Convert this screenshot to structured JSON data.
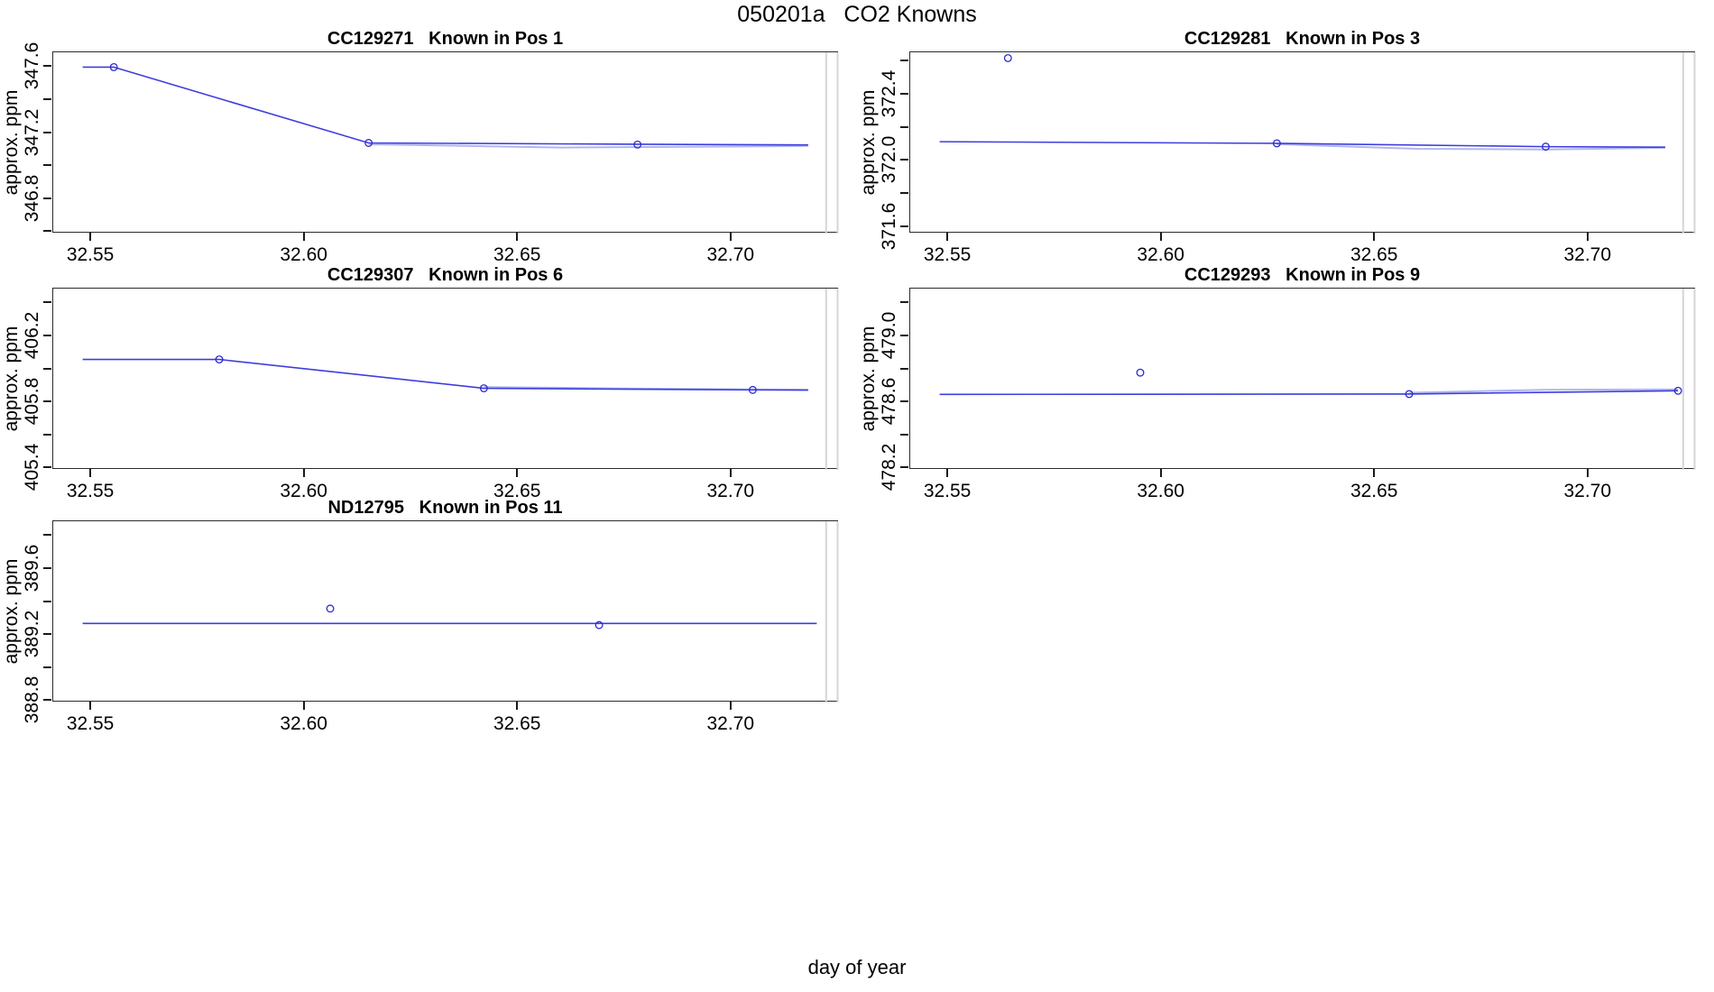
{
  "title": "050201a   CO2 Knowns",
  "xlabel": "day of year",
  "chart_data": {
    "type": "line",
    "layout": "grid-3rows-2cols, 5 panels, bottom-right empty",
    "grid": false,
    "xlim": [
      32.5411,
      32.7252
    ],
    "x_ticks": [
      {
        "v": 32.55,
        "label": "32.55"
      },
      {
        "v": 32.6,
        "label": "32.60"
      },
      {
        "v": 32.65,
        "label": "32.65"
      },
      {
        "v": 32.7,
        "label": "32.70"
      }
    ],
    "guide_lines_x": [
      32.7222,
      32.7252
    ],
    "colors": {
      "line": "#3d3de0",
      "point": "#2b2bcc",
      "fit": "#b0b6ee",
      "guide": "#d5d5d5",
      "axis": "#1a1a1a",
      "text": "#000000"
    },
    "panels": [
      {
        "id": "CC129271",
        "row": 0,
        "col": 0,
        "title": "CC129271   Known in Pos 1",
        "ylabel": "approx. ppm",
        "ylim": [
          346.59,
          347.69
        ],
        "y_ticks": [
          {
            "v": 346.6,
            "label": null
          },
          {
            "v": 346.8,
            "label": "346.8"
          },
          {
            "v": 347.0,
            "label": null
          },
          {
            "v": 347.2,
            "label": "347.2"
          },
          {
            "v": 347.4,
            "label": null
          },
          {
            "v": 347.6,
            "label": "347.6"
          }
        ],
        "points": [
          [
            32.5553,
            347.6
          ],
          [
            32.615,
            347.14
          ],
          [
            32.678,
            347.13
          ]
        ],
        "line": [
          [
            32.548,
            347.6
          ],
          [
            32.5553,
            347.6
          ],
          [
            32.615,
            347.14
          ],
          [
            32.678,
            347.132
          ],
          [
            32.718,
            347.128
          ]
        ],
        "fit_line": [
          [
            32.615,
            347.132
          ],
          [
            32.66,
            347.112
          ],
          [
            32.7,
            347.118
          ],
          [
            32.718,
            347.122
          ]
        ]
      },
      {
        "id": "CC129281",
        "row": 0,
        "col": 1,
        "title": "CC129281   Known in Pos 3",
        "ylabel": "approx. ppm",
        "ylim": [
          371.56,
          372.655
        ],
        "y_ticks": [
          {
            "v": 371.6,
            "label": "371.6"
          },
          {
            "v": 371.8,
            "label": null
          },
          {
            "v": 372.0,
            "label": "372.0"
          },
          {
            "v": 372.2,
            "label": null
          },
          {
            "v": 372.4,
            "label": "372.4"
          },
          {
            "v": 372.6,
            "label": null
          }
        ],
        "points": [
          [
            32.564,
            372.62
          ],
          [
            32.627,
            372.105
          ],
          [
            32.69,
            372.085
          ]
        ],
        "line": [
          [
            32.548,
            372.115
          ],
          [
            32.627,
            372.105
          ],
          [
            32.69,
            372.085
          ],
          [
            32.718,
            372.082
          ]
        ],
        "fit_line": [
          [
            32.627,
            372.1
          ],
          [
            32.66,
            372.072
          ],
          [
            32.69,
            372.068
          ],
          [
            32.718,
            372.078
          ]
        ]
      },
      {
        "id": "CC129307",
        "row": 1,
        "col": 0,
        "title": "CC129307   Known in Pos 6",
        "ylabel": "approx. ppm",
        "ylim": [
          405.39,
          406.49
        ],
        "y_ticks": [
          {
            "v": 405.4,
            "label": "405.4"
          },
          {
            "v": 405.6,
            "label": null
          },
          {
            "v": 405.8,
            "label": "405.8"
          },
          {
            "v": 406.0,
            "label": null
          },
          {
            "v": 406.2,
            "label": "406.2"
          },
          {
            "v": 406.4,
            "label": null
          }
        ],
        "points": [
          [
            32.58,
            406.06
          ],
          [
            32.642,
            405.885
          ],
          [
            32.705,
            405.875
          ]
        ],
        "line": [
          [
            32.548,
            406.06
          ],
          [
            32.58,
            406.06
          ],
          [
            32.642,
            405.885
          ],
          [
            32.705,
            405.875
          ],
          [
            32.718,
            405.874
          ]
        ],
        "fit_line": [
          [
            32.642,
            405.893
          ],
          [
            32.674,
            405.884
          ],
          [
            32.718,
            405.876
          ]
        ]
      },
      {
        "id": "CC129293",
        "row": 1,
        "col": 1,
        "title": "CC129293   Known in Pos 9",
        "ylabel": "approx. ppm",
        "ylim": [
          478.19,
          479.29
        ],
        "y_ticks": [
          {
            "v": 478.2,
            "label": "478.2"
          },
          {
            "v": 478.4,
            "label": null
          },
          {
            "v": 478.6,
            "label": "478.6"
          },
          {
            "v": 478.8,
            "label": null
          },
          {
            "v": 479.0,
            "label": "479.0"
          },
          {
            "v": 479.2,
            "label": null
          }
        ],
        "points": [
          [
            32.595,
            478.78
          ],
          [
            32.658,
            478.65
          ],
          [
            32.721,
            478.67
          ]
        ],
        "line": [
          [
            32.548,
            478.648
          ],
          [
            32.658,
            478.65
          ],
          [
            32.721,
            478.67
          ]
        ],
        "fit_line": [
          [
            32.658,
            478.658
          ],
          [
            32.69,
            478.676
          ],
          [
            32.721,
            478.678
          ]
        ]
      },
      {
        "id": "ND12795",
        "row": 2,
        "col": 0,
        "title": "ND12795   Known in Pos 11",
        "ylabel": "approx. ppm",
        "ylim": [
          388.79,
          389.89
        ],
        "y_ticks": [
          {
            "v": 388.8,
            "label": "388.8"
          },
          {
            "v": 389.0,
            "label": null
          },
          {
            "v": 389.2,
            "label": "389.2"
          },
          {
            "v": 389.4,
            "label": null
          },
          {
            "v": 389.6,
            "label": "389.6"
          },
          {
            "v": 389.8,
            "label": null
          }
        ],
        "points": [
          [
            32.606,
            389.36
          ],
          [
            32.669,
            389.26
          ]
        ],
        "line": [
          [
            32.548,
            389.27
          ],
          [
            32.72,
            389.27
          ]
        ],
        "fit_line": []
      }
    ]
  }
}
